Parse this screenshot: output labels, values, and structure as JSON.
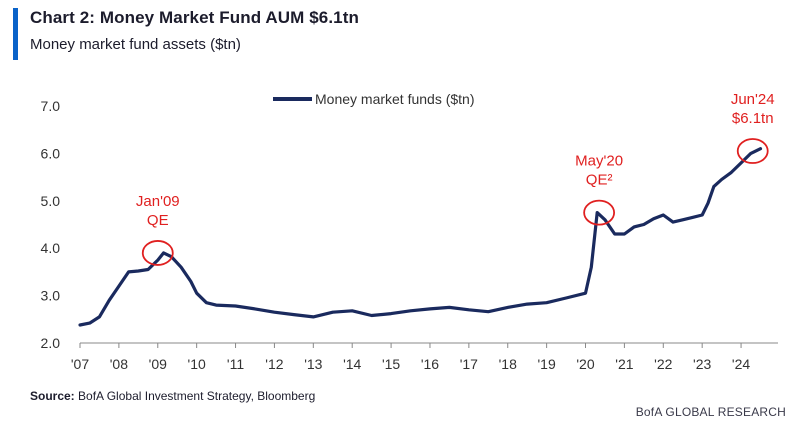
{
  "header": {
    "title": "Chart 2: Money Market Fund AUM $6.1tn",
    "subtitle": "Money market fund assets ($tn)",
    "accent_color": "#0a63c9"
  },
  "footer": {
    "source_label": "Source:",
    "source_text": "BofA Global Investment Strategy, Bloomberg",
    "brand": "BofA GLOBAL RESEARCH"
  },
  "chart_data": {
    "type": "line",
    "title": "Chart 2: Money Market Fund AUM $6.1tn",
    "ylabel": "Money market fund assets ($tn)",
    "xlabel": "",
    "xlim": [
      2007,
      2024.95
    ],
    "ylim": [
      2.0,
      7.0
    ],
    "yticks": [
      "2.0",
      "3.0",
      "4.0",
      "5.0",
      "6.0",
      "7.0"
    ],
    "ytick_values": [
      2.0,
      3.0,
      4.0,
      5.0,
      6.0,
      7.0
    ],
    "xticks": [
      "'07",
      "'08",
      "'09",
      "'10",
      "'11",
      "'12",
      "'13",
      "'14",
      "'15",
      "'16",
      "'17",
      "'18",
      "'19",
      "'20",
      "'21",
      "'22",
      "'23",
      "'24"
    ],
    "xtick_values": [
      2007,
      2008,
      2009,
      2010,
      2011,
      2012,
      2013,
      2014,
      2015,
      2016,
      2017,
      2018,
      2019,
      2020,
      2021,
      2022,
      2023,
      2024
    ],
    "grid": false,
    "legend": {
      "position": "top-center",
      "entries": [
        "Money market funds ($tn)"
      ]
    },
    "line_color": "#1a2a5e",
    "annotation_color": "#e02020",
    "series": [
      {
        "name": "Money market funds ($tn)",
        "x": [
          2007.0,
          2007.25,
          2007.5,
          2007.75,
          2008.0,
          2008.25,
          2008.5,
          2008.75,
          2009.0,
          2009.15,
          2009.35,
          2009.6,
          2009.85,
          2010.0,
          2010.25,
          2010.5,
          2011.0,
          2011.5,
          2012.0,
          2012.5,
          2013.0,
          2013.5,
          2014.0,
          2014.5,
          2015.0,
          2015.5,
          2016.0,
          2016.5,
          2017.0,
          2017.5,
          2018.0,
          2018.5,
          2019.0,
          2019.5,
          2020.0,
          2020.15,
          2020.3,
          2020.5,
          2020.75,
          2021.0,
          2021.25,
          2021.5,
          2021.75,
          2022.0,
          2022.25,
          2022.5,
          2022.75,
          2023.0,
          2023.15,
          2023.3,
          2023.5,
          2023.75,
          2024.0,
          2024.25,
          2024.5
        ],
        "y": [
          2.38,
          2.42,
          2.55,
          2.9,
          3.2,
          3.5,
          3.52,
          3.55,
          3.75,
          3.9,
          3.82,
          3.6,
          3.3,
          3.05,
          2.85,
          2.8,
          2.78,
          2.72,
          2.65,
          2.6,
          2.55,
          2.65,
          2.68,
          2.58,
          2.62,
          2.68,
          2.72,
          2.75,
          2.7,
          2.66,
          2.75,
          2.82,
          2.85,
          2.95,
          3.05,
          3.6,
          4.75,
          4.6,
          4.3,
          4.3,
          4.45,
          4.5,
          4.62,
          4.7,
          4.55,
          4.6,
          4.65,
          4.7,
          4.95,
          5.3,
          5.45,
          5.6,
          5.8,
          6.0,
          6.1
        ]
      }
    ],
    "annotations": [
      {
        "lines": [
          "Jan'09",
          "QE"
        ],
        "x": 2009.0,
        "y": 3.9
      },
      {
        "lines": [
          "May'20",
          "QE²"
        ],
        "x": 2020.35,
        "y": 4.75
      },
      {
        "lines": [
          "Jun'24",
          "$6.1tn"
        ],
        "x": 2024.3,
        "y": 6.05
      }
    ]
  }
}
